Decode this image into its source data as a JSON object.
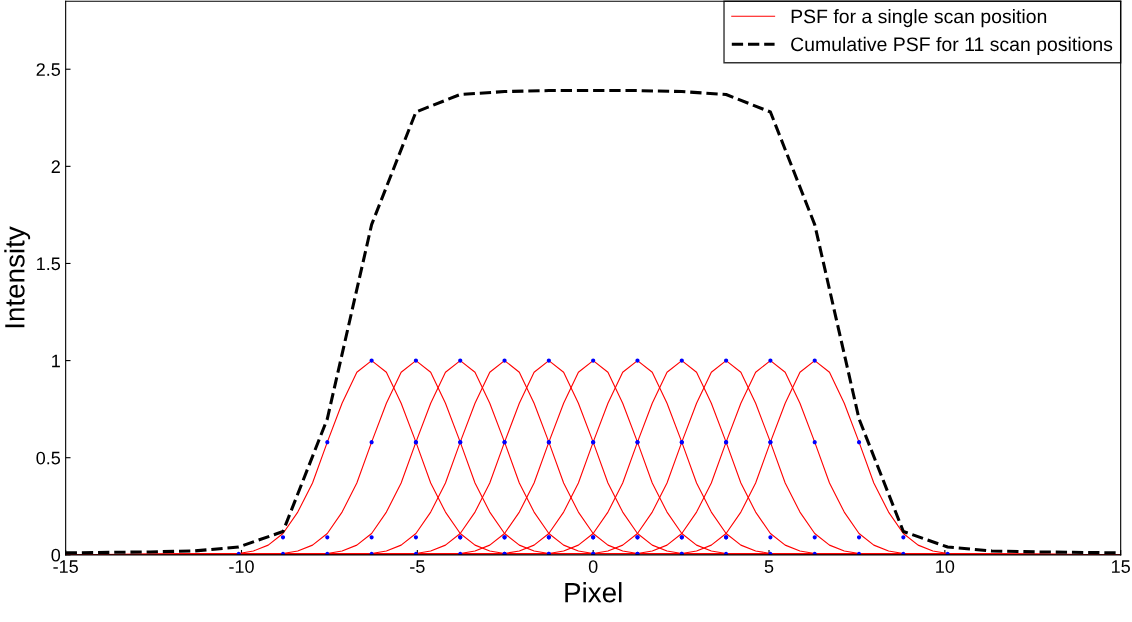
{
  "chart_data": {
    "type": "line",
    "xlabel": "Pixel",
    "ylabel": "Intensity",
    "xlim": [
      -15,
      15
    ],
    "xticks": [
      -15,
      -10,
      -5,
      0,
      5,
      10,
      15
    ],
    "ylim": [
      0,
      2.85
    ],
    "yticks": [
      0,
      0.5,
      1,
      1.5,
      2,
      2.5
    ],
    "grid": false,
    "legend": "top right",
    "series": [
      {
        "name": "PSF for a single scan position",
        "color": "#ff0000",
        "x": [
          -15,
          -10.08,
          -9.66,
          -9.24,
          -8.82,
          -8.4,
          -7.98,
          -7.56,
          -7.14,
          -6.72,
          -6.3,
          -5.88,
          -5.46,
          -5.04,
          -4.62,
          -4.2,
          -3.78,
          -3.36,
          -2.94,
          -2.52,
          15
        ],
        "values": [
          0,
          0.007,
          0.02,
          0.05,
          0.11,
          0.22,
          0.37,
          0.58,
          0.78,
          0.94,
          1,
          0.94,
          0.78,
          0.58,
          0.37,
          0.22,
          0.11,
          0.05,
          0.02,
          0.007,
          0
        ]
      },
      {
        "color": "#ff0000",
        "x": [
          -15,
          -8.82,
          -8.4,
          -7.98,
          -7.56,
          -7.14,
          -6.72,
          -6.3,
          -5.88,
          -5.46,
          -5.04,
          -4.62,
          -4.2,
          -3.78,
          -3.36,
          -2.94,
          -2.52,
          -2.1,
          -1.68,
          -1.26,
          15
        ],
        "values": [
          0,
          0.007,
          0.02,
          0.05,
          0.11,
          0.22,
          0.37,
          0.58,
          0.78,
          0.94,
          1,
          0.94,
          0.78,
          0.58,
          0.37,
          0.22,
          0.11,
          0.05,
          0.02,
          0.007,
          0
        ]
      },
      {
        "color": "#ff0000",
        "x": [
          -15,
          -7.56,
          -7.14,
          -6.72,
          -6.3,
          -5.88,
          -5.46,
          -5.04,
          -4.62,
          -4.2,
          -3.78,
          -3.36,
          -2.94,
          -2.52,
          -2.1,
          -1.68,
          -1.26,
          -0.84,
          -0.42,
          0,
          15
        ],
        "values": [
          0,
          0.007,
          0.02,
          0.05,
          0.11,
          0.22,
          0.37,
          0.58,
          0.78,
          0.94,
          1,
          0.94,
          0.78,
          0.58,
          0.37,
          0.22,
          0.11,
          0.05,
          0.02,
          0.007,
          0
        ]
      },
      {
        "color": "#ff0000",
        "x": [
          -15,
          -6.3,
          -5.88,
          -5.46,
          -5.04,
          -4.62,
          -4.2,
          -3.78,
          -3.36,
          -2.94,
          -2.52,
          -2.1,
          -1.68,
          -1.26,
          -0.84,
          -0.42,
          0,
          0.42,
          0.84,
          1.26,
          15
        ],
        "values": [
          0,
          0.007,
          0.02,
          0.05,
          0.11,
          0.22,
          0.37,
          0.58,
          0.78,
          0.94,
          1,
          0.94,
          0.78,
          0.58,
          0.37,
          0.22,
          0.11,
          0.05,
          0.02,
          0.007,
          0
        ]
      },
      {
        "color": "#ff0000",
        "x": [
          -15,
          -5.04,
          -4.62,
          -4.2,
          -3.78,
          -3.36,
          -2.94,
          -2.52,
          -2.1,
          -1.68,
          -1.26,
          -0.84,
          -0.42,
          0,
          0.42,
          0.84,
          1.26,
          1.68,
          2.1,
          2.52,
          15
        ],
        "values": [
          0,
          0.007,
          0.02,
          0.05,
          0.11,
          0.22,
          0.37,
          0.58,
          0.78,
          0.94,
          1,
          0.94,
          0.78,
          0.58,
          0.37,
          0.22,
          0.11,
          0.05,
          0.02,
          0.007,
          0
        ]
      },
      {
        "color": "#ff0000",
        "x": [
          -15,
          -3.78,
          -3.36,
          -2.94,
          -2.52,
          -2.1,
          -1.68,
          -1.26,
          -0.84,
          -0.42,
          0,
          0.42,
          0.84,
          1.26,
          1.68,
          2.1,
          2.52,
          2.94,
          3.36,
          3.78,
          15
        ],
        "values": [
          0,
          0.007,
          0.02,
          0.05,
          0.11,
          0.22,
          0.37,
          0.58,
          0.78,
          0.94,
          1,
          0.94,
          0.78,
          0.58,
          0.37,
          0.22,
          0.11,
          0.05,
          0.02,
          0.007,
          0
        ]
      },
      {
        "color": "#ff0000",
        "x": [
          -15,
          -2.52,
          -2.1,
          -1.68,
          -1.26,
          -0.84,
          -0.42,
          0,
          0.42,
          0.84,
          1.26,
          1.68,
          2.1,
          2.52,
          2.94,
          3.36,
          3.78,
          4.2,
          4.62,
          5.04,
          15
        ],
        "values": [
          0,
          0.007,
          0.02,
          0.05,
          0.11,
          0.22,
          0.37,
          0.58,
          0.78,
          0.94,
          1,
          0.94,
          0.78,
          0.58,
          0.37,
          0.22,
          0.11,
          0.05,
          0.02,
          0.007,
          0
        ]
      },
      {
        "color": "#ff0000",
        "x": [
          -15,
          -1.26,
          -0.84,
          -0.42,
          0,
          0.42,
          0.84,
          1.26,
          1.68,
          2.1,
          2.52,
          2.94,
          3.36,
          3.78,
          4.2,
          4.62,
          5.04,
          5.46,
          5.88,
          6.3,
          15
        ],
        "values": [
          0,
          0.007,
          0.02,
          0.05,
          0.11,
          0.22,
          0.37,
          0.58,
          0.78,
          0.94,
          1,
          0.94,
          0.78,
          0.58,
          0.37,
          0.22,
          0.11,
          0.05,
          0.02,
          0.007,
          0
        ]
      },
      {
        "color": "#ff0000",
        "x": [
          -15,
          0,
          0.42,
          0.84,
          1.26,
          1.68,
          2.1,
          2.52,
          2.94,
          3.36,
          3.78,
          4.2,
          4.62,
          5.04,
          5.46,
          5.88,
          6.3,
          6.72,
          7.14,
          7.56,
          15
        ],
        "values": [
          0,
          0.007,
          0.02,
          0.05,
          0.11,
          0.22,
          0.37,
          0.58,
          0.78,
          0.94,
          1,
          0.94,
          0.78,
          0.58,
          0.37,
          0.22,
          0.11,
          0.05,
          0.02,
          0.007,
          0
        ]
      },
      {
        "color": "#ff0000",
        "x": [
          -15,
          1.26,
          1.68,
          2.1,
          2.52,
          2.94,
          3.36,
          3.78,
          4.2,
          4.62,
          5.04,
          5.46,
          5.88,
          6.3,
          6.72,
          7.14,
          7.56,
          7.98,
          8.4,
          8.82,
          15
        ],
        "values": [
          0,
          0.007,
          0.02,
          0.05,
          0.11,
          0.22,
          0.37,
          0.58,
          0.78,
          0.94,
          1,
          0.94,
          0.78,
          0.58,
          0.37,
          0.22,
          0.11,
          0.05,
          0.02,
          0.007,
          0
        ]
      },
      {
        "color": "#ff0000",
        "x": [
          -15,
          2.52,
          2.94,
          3.36,
          3.78,
          4.2,
          4.62,
          5.04,
          5.46,
          5.88,
          6.3,
          6.72,
          7.14,
          7.56,
          7.98,
          8.4,
          8.82,
          9.24,
          9.66,
          10.08,
          15
        ],
        "values": [
          0,
          0.007,
          0.02,
          0.05,
          0.11,
          0.22,
          0.37,
          0.58,
          0.78,
          0.94,
          1,
          0.94,
          0.78,
          0.58,
          0.37,
          0.22,
          0.11,
          0.05,
          0.02,
          0.007,
          0
        ]
      },
      {
        "type": "scatter",
        "color": "#0000ff",
        "x": [
          -10.08,
          -8.82,
          -7.56,
          -6.3,
          -5.04,
          -3.78,
          -2.52,
          -8.82,
          -7.56,
          -6.3,
          -5.04,
          -3.78,
          -2.52,
          -1.26,
          -7.56,
          -6.3,
          -5.04,
          -3.78,
          -2.52,
          -1.26,
          0,
          -6.3,
          -5.04,
          -3.78,
          -2.52,
          -1.26,
          0,
          1.26,
          -5.04,
          -3.78,
          -2.52,
          -1.26,
          0,
          1.26,
          2.52,
          -3.78,
          -2.52,
          -1.26,
          0,
          1.26,
          2.52,
          3.78,
          -2.52,
          -1.26,
          0,
          1.26,
          2.52,
          3.78,
          5.04,
          -1.26,
          0,
          1.26,
          2.52,
          3.78,
          5.04,
          6.3,
          0,
          1.26,
          2.52,
          3.78,
          5.04,
          6.3,
          7.56,
          1.26,
          2.52,
          3.78,
          5.04,
          6.3,
          7.56,
          8.82,
          2.52,
          3.78,
          5.04,
          6.3,
          7.56,
          8.82,
          10.08
        ],
        "values": [
          0.005,
          0.09,
          0.58,
          1,
          0.58,
          0.09,
          0.005,
          0.005,
          0.09,
          0.58,
          1,
          0.58,
          0.09,
          0.005,
          0.005,
          0.09,
          0.58,
          1,
          0.58,
          0.09,
          0.005,
          0.005,
          0.09,
          0.58,
          1,
          0.58,
          0.09,
          0.005,
          0.005,
          0.09,
          0.58,
          1,
          0.58,
          0.09,
          0.005,
          0.005,
          0.09,
          0.58,
          1,
          0.58,
          0.09,
          0.005,
          0.005,
          0.09,
          0.58,
          1,
          0.58,
          0.09,
          0.005,
          0.005,
          0.09,
          0.58,
          1,
          0.58,
          0.09,
          0.005,
          0.005,
          0.09,
          0.58,
          1,
          0.58,
          0.09,
          0.005,
          0.005,
          0.09,
          0.58,
          1,
          0.58,
          0.09,
          0.005,
          0.005,
          0.09,
          0.58,
          1,
          0.58,
          0.09,
          0.005
        ]
      },
      {
        "name": "Cumulative PSF for 11 scan positions",
        "color": "#000000",
        "line_style": "dashed",
        "x": [
          -15,
          -12.6,
          -11.34,
          -10.08,
          -8.82,
          -7.56,
          -6.3,
          -5.04,
          -3.78,
          -2.52,
          -1.26,
          0,
          1.26,
          2.52,
          3.78,
          5.04,
          6.3,
          7.56,
          8.82,
          10.08,
          11.34,
          12.6,
          15
        ],
        "values": [
          0.01,
          0.015,
          0.02,
          0.04,
          0.12,
          0.7,
          1.7,
          2.28,
          2.37,
          2.385,
          2.39,
          2.39,
          2.39,
          2.385,
          2.37,
          2.28,
          1.7,
          0.7,
          0.12,
          0.04,
          0.02,
          0.015,
          0.01
        ]
      }
    ]
  }
}
